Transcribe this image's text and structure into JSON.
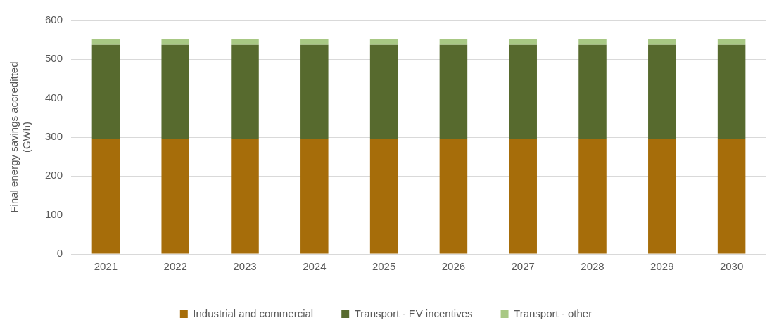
{
  "chart_data": {
    "type": "bar",
    "stacked": true,
    "ylabel": "Final energy savings accreditted\n(GWh)",
    "categories": [
      "2021",
      "2022",
      "2023",
      "2024",
      "2025",
      "2026",
      "2027",
      "2028",
      "2029",
      "2030"
    ],
    "series": [
      {
        "name": "Industrial and commercial",
        "color": "#a66d0a",
        "values": [
          295,
          295,
          295,
          295,
          295,
          295,
          295,
          295,
          295,
          295
        ]
      },
      {
        "name": "Transport - EV incentives",
        "color": "#576a2e",
        "values": [
          242,
          242,
          242,
          242,
          242,
          242,
          242,
          242,
          242,
          242
        ]
      },
      {
        "name": "Transport - other",
        "color": "#a8c884",
        "values": [
          15,
          15,
          15,
          15,
          15,
          15,
          15,
          15,
          15,
          15
        ]
      }
    ],
    "ylim": [
      0,
      600
    ],
    "yticks": [
      0,
      100,
      200,
      300,
      400,
      500,
      600
    ],
    "grid": "y",
    "legend": "bottom"
  }
}
